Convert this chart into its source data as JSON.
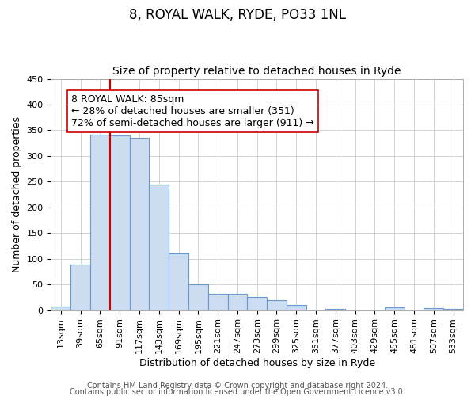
{
  "title": "8, ROYAL WALK, RYDE, PO33 1NL",
  "subtitle": "Size of property relative to detached houses in Ryde",
  "xlabel": "Distribution of detached houses by size in Ryde",
  "ylabel": "Number of detached properties",
  "footer_line1": "Contains HM Land Registry data © Crown copyright and database right 2024.",
  "footer_line2": "Contains public sector information licensed under the Open Government Licence v3.0.",
  "bar_labels": [
    "13sqm",
    "39sqm",
    "65sqm",
    "91sqm",
    "117sqm",
    "143sqm",
    "169sqm",
    "195sqm",
    "221sqm",
    "247sqm",
    "273sqm",
    "299sqm",
    "325sqm",
    "351sqm",
    "377sqm",
    "403sqm",
    "429sqm",
    "455sqm",
    "481sqm",
    "507sqm",
    "533sqm"
  ],
  "bar_heights": [
    7,
    89,
    342,
    340,
    335,
    245,
    110,
    50,
    32,
    32,
    25,
    20,
    10,
    0,
    2,
    0,
    0,
    5,
    0,
    4,
    3
  ],
  "bar_color": "#ccddf2",
  "bar_edgecolor": "#6699cc",
  "bar_linewidth": 0.8,
  "vline_color": "#cc0000",
  "vline_linewidth": 1.5,
  "annotation_line1": "8 ROYAL WALK: 85sqm",
  "annotation_line2": "← 28% of detached houses are smaller (351)",
  "annotation_line3": "72% of semi-detached houses are larger (911) →",
  "ylim": [
    0,
    450
  ],
  "background_color": "#ffffff",
  "title_fontsize": 12,
  "subtitle_fontsize": 10,
  "axis_label_fontsize": 9,
  "tick_fontsize": 8,
  "footer_fontsize": 7,
  "annotation_fontsize": 9
}
